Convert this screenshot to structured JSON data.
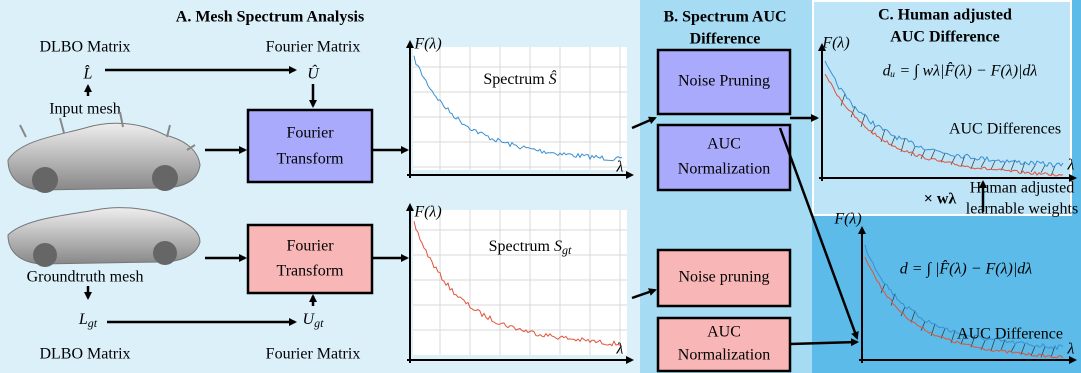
{
  "sections": {
    "a": {
      "title": "A. Mesh Spectrum Analysis"
    },
    "b": {
      "title": [
        "B. Spectrum AUC",
        "Difference"
      ]
    },
    "c": {
      "title": [
        "C. Human adjusted",
        "AUC Difference"
      ]
    }
  },
  "input": {
    "matrix_label": "DLBO Matrix",
    "fourier_label": "Fourier Matrix",
    "L": "L̂",
    "U": "Û",
    "mesh": "Input mesh",
    "transform": [
      "Fourier",
      "Transform"
    ],
    "spectrum": {
      "text": "Spectrum",
      "symbol": "Ŝ"
    }
  },
  "groundtruth": {
    "matrix_label": "DLBO Matrix",
    "fourier_label": "Fourier Matrix",
    "L": {
      "base": "L",
      "sub": "gt"
    },
    "U": {
      "base": "U",
      "sub": "gt"
    },
    "mesh": "Groundtruth mesh",
    "transform": [
      "Fourier",
      "Transform"
    ],
    "spectrum": {
      "text": "Spectrum",
      "symbol": "S",
      "sub": "gt"
    }
  },
  "difference": {
    "input_pruning": "Noise Pruning",
    "input_normalization": [
      "AUC",
      "Normalization"
    ],
    "gt_pruning": "Noise pruning",
    "gt_normalization": [
      "AUC",
      "Normalization"
    ]
  },
  "human": {
    "weighted_formula": "dᵤ = ∫ wλ|F̂(λ) − F(λ)|dλ",
    "weighted_label": "AUC Differences",
    "formula": "d = ∫ |F̂(λ) − F(λ)|dλ",
    "label": "AUC Difference",
    "multiplier": "× wλ",
    "weights": [
      "Human adjusted",
      "learnable weights"
    ]
  },
  "axes": {
    "y": "F(λ)",
    "x": "λ"
  }
}
